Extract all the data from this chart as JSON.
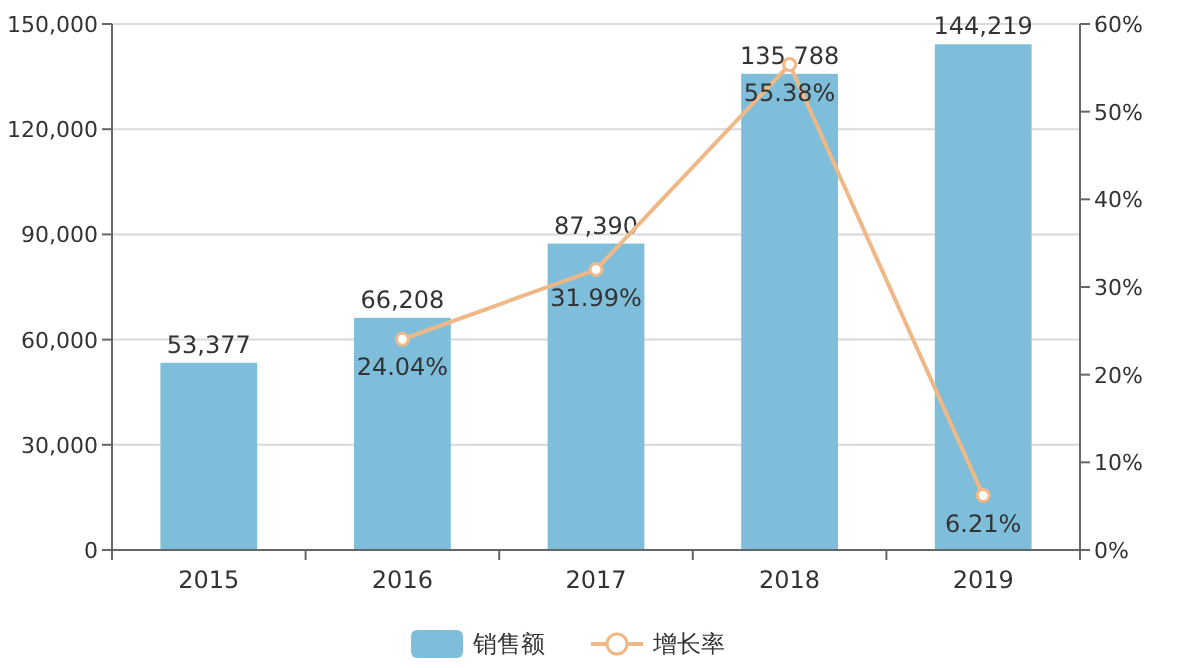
{
  "chart_data": {
    "type": "bar",
    "categories": [
      "2015",
      "2016",
      "2017",
      "2018",
      "2019"
    ],
    "series": [
      {
        "name": "销售额",
        "color": "#7fbedb",
        "values": [
          53377,
          66208,
          87390,
          135788,
          144219
        ],
        "value_labels": [
          "53,377",
          "66,208",
          "87,390",
          "135,788",
          "144,219"
        ]
      },
      {
        "name": "增长率",
        "type": "line",
        "axis": "y2",
        "color": "#efb887",
        "marker": "circle",
        "values": [
          null,
          24.04,
          31.99,
          55.38,
          6.21
        ],
        "value_labels": [
          null,
          "24.04%",
          "31.99%",
          "55.38%",
          "6.21%"
        ]
      }
    ],
    "ylim": [
      0,
      150000
    ],
    "yticks": [
      {
        "value": 0,
        "label": "0"
      },
      {
        "value": 30000,
        "label": "30,000"
      },
      {
        "value": 60000,
        "label": "60,000"
      },
      {
        "value": 90000,
        "label": "90,000"
      },
      {
        "value": 120000,
        "label": "120,000"
      },
      {
        "value": 150000,
        "label": "150,000"
      }
    ],
    "y2lim": [
      0,
      60
    ],
    "y2ticks": [
      {
        "value": 0,
        "label": "0%"
      },
      {
        "value": 10,
        "label": "10%"
      },
      {
        "value": 20,
        "label": "20%"
      },
      {
        "value": 30,
        "label": "30%"
      },
      {
        "value": 40,
        "label": "40%"
      },
      {
        "value": 50,
        "label": "50%"
      },
      {
        "value": 60,
        "label": "60%"
      }
    ],
    "grid": "y",
    "legend": "bottom"
  }
}
